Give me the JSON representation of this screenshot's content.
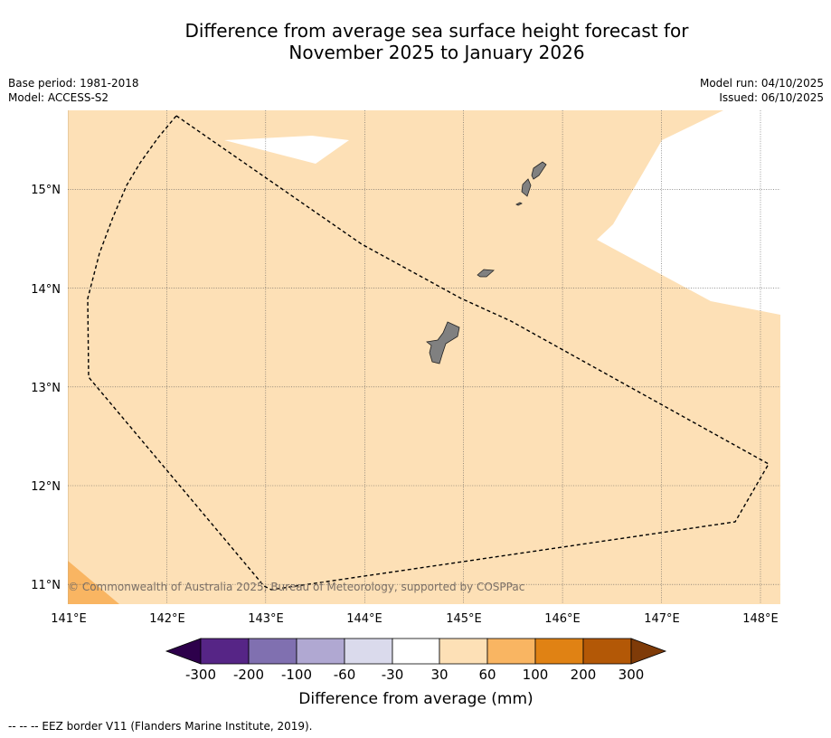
{
  "header": {
    "title_line1": "Difference from average sea surface height forecast for",
    "title_line2": "November 2025 to January 2026",
    "base_period": "Base period: 1981-2018",
    "model": "Model: ACCESS-S2",
    "model_run": "Model run: 04/10/2025",
    "issued": "Issued: 06/10/2025"
  },
  "map": {
    "lat_range": [
      10.8,
      15.8
    ],
    "lon_range": [
      141.0,
      148.2
    ],
    "lat_labels": [
      "11°N",
      "12°N",
      "13°N",
      "14°N",
      "15°N"
    ],
    "lon_labels": [
      "141°E",
      "142°E",
      "143°E",
      "144°E",
      "145°E",
      "146°E",
      "147°E",
      "148°E"
    ],
    "copyright": "© Commonwealth of Australia 2025, Bureau of Meteorology, supported by COSPPac",
    "ocean_color": "#fde0b6",
    "land_color": "#808080"
  },
  "colorbar": {
    "title": "Difference from average (mm)",
    "labels": [
      "-300",
      "-200",
      "-100",
      "-60",
      "-30",
      "30",
      "60",
      "100",
      "200",
      "300"
    ],
    "colors": [
      "#562586",
      "#8070b0",
      "#b0a8d2",
      "#dadaec",
      "#ffffff",
      "#fde0b6",
      "#f9b562",
      "#e08214",
      "#b35806"
    ],
    "under_color": "#2d004b",
    "over_color": "#7f3b08"
  },
  "legend": {
    "eez": "--  --  -- EEZ border V11 (Flanders Marine Institute, 2019)."
  }
}
